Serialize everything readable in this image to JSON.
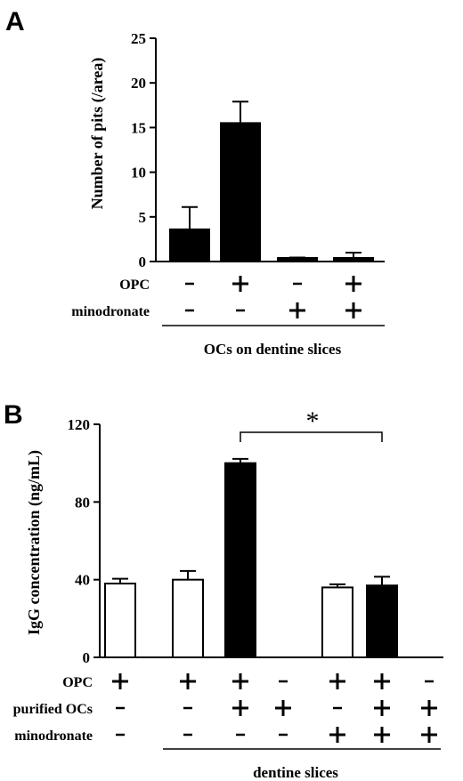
{
  "chart_data": [
    {
      "type": "bar",
      "panel": "A",
      "ylabel": "Number of pits (/area)",
      "ylim": [
        0,
        25
      ],
      "yticks": [
        "0",
        "5",
        "10",
        "15",
        "20",
        "25"
      ],
      "categories": [
        "1",
        "2",
        "3",
        "4"
      ],
      "values": [
        3.6,
        15.5,
        0.4,
        0.4
      ],
      "errors": [
        2.5,
        2.4,
        0.05,
        0.6
      ],
      "fills": [
        "#000000",
        "#000000",
        "#000000",
        "#000000"
      ],
      "conditions": [
        {
          "label": "OPC",
          "signs": [
            "-",
            "+",
            "-",
            "+"
          ]
        },
        {
          "label": "minodronate",
          "signs": [
            "-",
            "-",
            "+",
            "+"
          ]
        }
      ],
      "group_label": "OCs on dentine slices"
    },
    {
      "type": "bar",
      "panel": "B",
      "ylabel": "IgG concentration (ng/mL)",
      "ylim": [
        0,
        120
      ],
      "yticks": [
        "0",
        "40",
        "80",
        "120"
      ],
      "categories": [
        "1",
        "2",
        "3",
        "4",
        "5",
        "6",
        "7"
      ],
      "values": [
        38,
        40,
        100,
        0,
        36,
        37,
        0
      ],
      "errors": [
        2.5,
        4.5,
        2.2,
        0,
        1.6,
        4.5,
        0
      ],
      "fills": [
        "#ffffff",
        "#ffffff",
        "#000000",
        "#000000",
        "#ffffff",
        "#000000",
        "#000000"
      ],
      "conditions": [
        {
          "label": "OPC",
          "signs": [
            "+",
            "+",
            "+",
            "-",
            "+",
            "+",
            "-"
          ]
        },
        {
          "label": "purified OCs",
          "signs": [
            "-",
            "-",
            "+",
            "+",
            "-",
            "+",
            "+"
          ]
        },
        {
          "label": "minodronate",
          "signs": [
            "-",
            "-",
            "-",
            "-",
            "+",
            "+",
            "+"
          ]
        }
      ],
      "group_label": "dentine slices",
      "significance": "*"
    }
  ],
  "panel_letters": [
    "A",
    "B"
  ]
}
